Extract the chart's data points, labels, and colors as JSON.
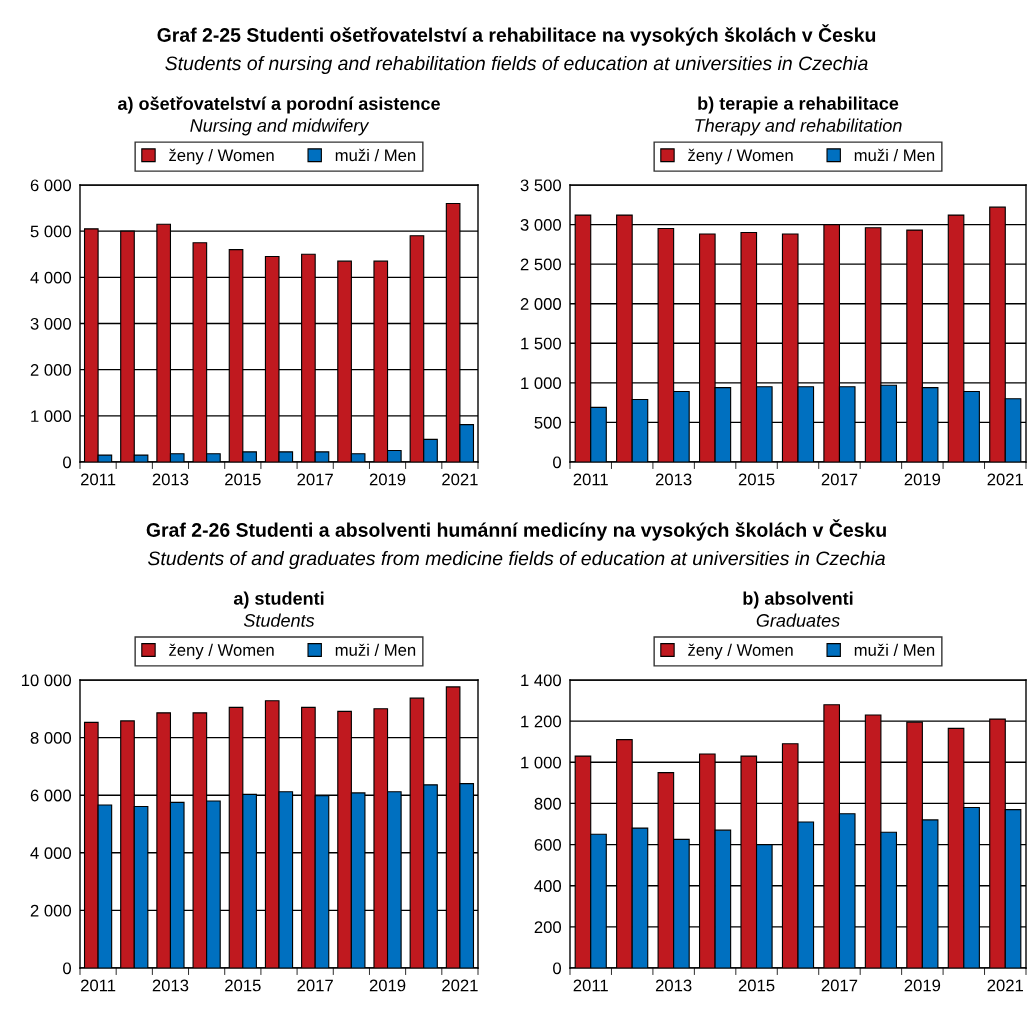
{
  "chart_data": [
    {
      "type": "bar",
      "title": "a) ošetřovatelství a porodní asistence",
      "subtitle": "Nursing and midwifery",
      "annotations": [
        "Graf 2-25 Studenti ošetřovatelství a rehabilitace na vysokých školách v Česku",
        "Students of nursing and rehabilitation fields of education at universities in Czechia"
      ],
      "categories": [
        "2011",
        null,
        "2013",
        null,
        "2015",
        null,
        "2017",
        null,
        "2019",
        null,
        "2021"
      ],
      "series": [
        {
          "name": "ženy / Women",
          "color": "#c0191f",
          "values": [
            5050,
            5000,
            5150,
            4750,
            4600,
            4450,
            4500,
            4350,
            4350,
            4900,
            5600
          ]
        },
        {
          "name": "muži / Men",
          "color": "#0070c0",
          "values": [
            150,
            150,
            180,
            180,
            220,
            220,
            220,
            180,
            250,
            490,
            810
          ]
        }
      ],
      "ylim": [
        0,
        6000
      ],
      "yticks": [
        0,
        {
          "value": 1000,
          "label": "1 000"
        },
        {
          "value": 2000,
          "label": "2 000"
        },
        {
          "value": 3000,
          "label": "3 000"
        },
        {
          "value": 4000,
          "label": "4 000"
        },
        {
          "value": 5000,
          "label": "5 000"
        },
        {
          "value": 6000,
          "label": "6 000"
        }
      ],
      "grid": "y",
      "legend": "top"
    },
    {
      "type": "bar",
      "title": "b) terapie a rehabilitace",
      "subtitle": "Therapy and rehabilitation",
      "categories": [
        "2011",
        null,
        "2013",
        null,
        "2015",
        null,
        "2017",
        null,
        "2019",
        null,
        "2021"
      ],
      "series": [
        {
          "name": "ženy / Women",
          "color": "#c0191f",
          "values": [
            3120,
            3120,
            2950,
            2880,
            2900,
            2880,
            3000,
            2960,
            2930,
            3120,
            3220
          ]
        },
        {
          "name": "muži / Men",
          "color": "#0070c0",
          "values": [
            690,
            790,
            890,
            940,
            950,
            950,
            950,
            970,
            940,
            890,
            800
          ]
        }
      ],
      "ylim": [
        0,
        3500
      ],
      "yticks": [
        0,
        500,
        {
          "value": 1000,
          "label": "1 000"
        },
        {
          "value": 1500,
          "label": "1 500"
        },
        {
          "value": 2000,
          "label": "2 000"
        },
        {
          "value": 2500,
          "label": "2 500"
        },
        {
          "value": 3000,
          "label": "3 000"
        },
        {
          "value": 3500,
          "label": "3 500"
        }
      ],
      "grid": "y",
      "legend": "top"
    },
    {
      "type": "bar",
      "title": "a) studenti",
      "subtitle": "Students",
      "annotations": [
        "Graf 2-26 Studenti a absolventi humánní medicíny na vysokých školách v Česku",
        "Students of and graduates from medicine fields of education at universities in Czechia"
      ],
      "categories": [
        "2011",
        null,
        "2013",
        null,
        "2015",
        null,
        "2017",
        null,
        "2019",
        null,
        "2021"
      ],
      "series": [
        {
          "name": "ženy / Women",
          "color": "#c0191f",
          "values": [
            8530,
            8580,
            8860,
            8860,
            9050,
            9280,
            9050,
            8910,
            9000,
            9370,
            9760
          ]
        },
        {
          "name": "muži / Men",
          "color": "#0070c0",
          "values": [
            5660,
            5610,
            5750,
            5800,
            6030,
            6120,
            5980,
            6080,
            6120,
            6360,
            6400
          ]
        }
      ],
      "ylim": [
        0,
        10000
      ],
      "yticks": [
        0,
        {
          "value": 2000,
          "label": "2 000"
        },
        {
          "value": 4000,
          "label": "4 000"
        },
        {
          "value": 6000,
          "label": "6 000"
        },
        {
          "value": 8000,
          "label": "8 000"
        },
        {
          "value": 10000,
          "label": "10 000"
        }
      ],
      "grid": "y",
      "legend": "top"
    },
    {
      "type": "bar",
      "title": "b) absolventi",
      "subtitle": "Graduates",
      "categories": [
        "2011",
        null,
        "2013",
        null,
        "2015",
        null,
        "2017",
        null,
        "2019",
        null,
        "2021"
      ],
      "series": [
        {
          "name": "ženy / Women",
          "color": "#c0191f",
          "values": [
            1030,
            1110,
            950,
            1040,
            1030,
            1090,
            1280,
            1230,
            1195,
            1165,
            1210
          ]
        },
        {
          "name": "muži / Men",
          "color": "#0070c0",
          "values": [
            650,
            680,
            625,
            670,
            600,
            710,
            750,
            660,
            720,
            780,
            770
          ]
        }
      ],
      "ylim": [
        0,
        1400
      ],
      "yticks": [
        0,
        200,
        400,
        600,
        800,
        {
          "value": 1000,
          "label": "1 000"
        },
        {
          "value": 1200,
          "label": "1 200"
        },
        {
          "value": 1400,
          "label": "1 400"
        }
      ],
      "grid": "y",
      "legend": "top"
    }
  ]
}
